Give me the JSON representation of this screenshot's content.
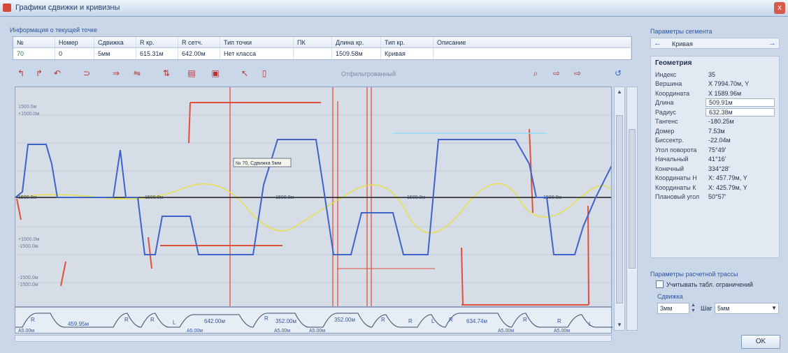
{
  "window": {
    "title": "Графики сдвижки и кривизны",
    "close_label": "x"
  },
  "info": {
    "title": "Информация о текущей точке",
    "columns": [
      "№",
      "Номер",
      "Сдвижка",
      "R кр.",
      "R сетч.",
      "Тип точки",
      "ПК",
      "Длина кр.",
      "Тип кр.",
      "Описание"
    ],
    "row": [
      "70",
      "0",
      "5мм",
      "615.31м",
      "642.00м",
      "Нет класса",
      "",
      "1509.58м",
      "Кривая",
      ""
    ]
  },
  "toolbar": {
    "search_placeholder": "Отфильтрованный"
  },
  "plot": {
    "tooltip": "№ 70, Сдвижка 5мм",
    "left_labels": [
      "1500.0м",
      "+1500.0м",
      "+1500.0м",
      "-1500.0м",
      "-1500.0м",
      "-1500.0м"
    ],
    "axis_labels": [
      "1500.0м",
      "1500.0м",
      "1500.0м",
      "1500.0м",
      "1500.0м"
    ]
  },
  "band": {
    "segments": [
      "R",
      "459.95м",
      "R",
      "R",
      "L",
      "642.00м",
      "R",
      "352.00м",
      "352.00м",
      "R",
      "R",
      "L",
      "R",
      "634.74м",
      "R",
      "R",
      "L"
    ],
    "sublabels": [
      "A5.00м",
      "A5.00м",
      "A5.00м",
      "A5.00м",
      "A5.00м",
      "A5.00м"
    ]
  },
  "right": {
    "title": "Параметры сегмента",
    "segment_name": "Кривая",
    "geometry_header": "Геометрия",
    "params": [
      {
        "label": "Индекс",
        "value": "35"
      },
      {
        "label": "Вершина",
        "value": "X 7994.70м, Y"
      },
      {
        "label": "Координата",
        "value": "X 1589.96м"
      },
      {
        "label": "Длина",
        "value": "509.91м"
      },
      {
        "label": "Радиус",
        "value": "632.38м"
      },
      {
        "label": "Тангенс",
        "value": "-180.25м"
      },
      {
        "label": "Домер",
        "value": "7.53м"
      },
      {
        "label": "Биссектр.",
        "value": "-22.04м"
      },
      {
        "label": "Угол поворота",
        "value": "75°49'"
      },
      {
        "label": "Начальный",
        "value": "41°16'"
      },
      {
        "label": "Конечный",
        "value": "334°28'"
      },
      {
        "label": "Координаты Н",
        "value": "X: 457.79м, Y"
      },
      {
        "label": "Координаты К",
        "value": "X: 425.79м, Y"
      },
      {
        "label": "Плановый угол",
        "value": "50°57'"
      }
    ],
    "region_title": "Параметры расчетной трассы",
    "checkbox_label": "Учитывать табл. ограничений",
    "shift_label": "Сдвижка",
    "shift_value": "3мм",
    "step_label": "Шаг",
    "step_value": "5мм",
    "ok_label": "OK"
  },
  "colors": {
    "blue_curve": "#3e63c9",
    "red_lines": "#e0503f",
    "yellow_curve": "#e6de4a",
    "cyan_line": "#8de0f0",
    "baseline": "#1a1a1a"
  }
}
